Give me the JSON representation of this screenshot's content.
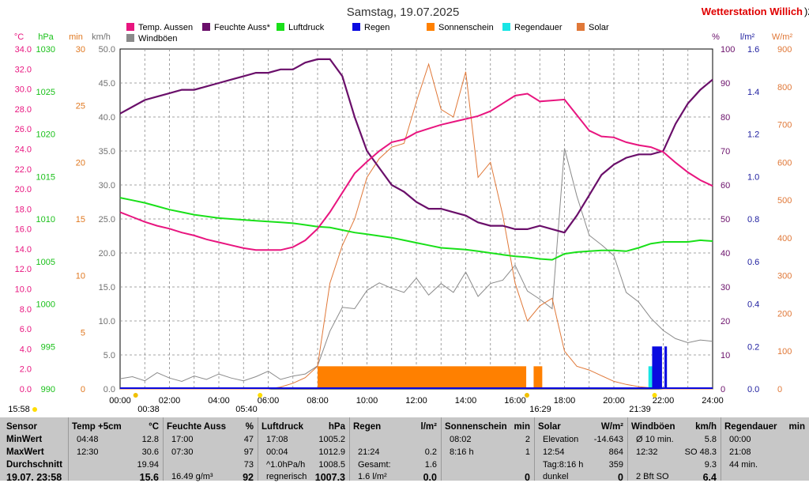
{
  "title": "Samstag, 19.07.2025",
  "brand": "Wetterstation Willich",
  "brand_suffix": ")2",
  "colors": {
    "temp": "#e8157f",
    "humidity": "#6a0f6a",
    "pressure": "#19e019",
    "rain": "#0a0ae0",
    "sunshine": "#ff8000",
    "raintime": "#19e5e5",
    "solar": "#e07838",
    "gust": "#8a8a8a",
    "brand": "#e00000"
  },
  "legend": [
    {
      "label": "Temp. Aussen",
      "key": "temp"
    },
    {
      "label": "Feuchte Auss*",
      "key": "humidity"
    },
    {
      "label": "Luftdruck",
      "key": "pressure"
    },
    {
      "label": "Regen",
      "key": "rain"
    },
    {
      "label": "Sonnenschein",
      "key": "sunshine"
    },
    {
      "label": "Regendauer",
      "key": "raintime"
    },
    {
      "label": "Solar",
      "key": "solar"
    },
    {
      "label": "Windböen",
      "key": "gust"
    }
  ],
  "axes": {
    "left": [
      {
        "unit": "°C",
        "color": "#e8157f",
        "ticks": [
          "34.0",
          "32.0",
          "30.0",
          "28.0",
          "26.0",
          "24.0",
          "22.0",
          "20.0",
          "18.0",
          "16.0",
          "14.0",
          "12.0",
          "10.0",
          "8.0",
          "6.0",
          "4.0",
          "2.0",
          "0.0"
        ]
      },
      {
        "unit": "hPa",
        "color": "#19c019",
        "ticks": [
          "1030",
          "1025",
          "1020",
          "1015",
          "1010",
          "1005",
          "1000",
          "995",
          "990"
        ]
      },
      {
        "unit": "min",
        "color": "#e07820",
        "ticks": [
          "30",
          "25",
          "20",
          "15",
          "10",
          "5",
          "0"
        ]
      },
      {
        "unit": "km/h",
        "color": "#707070",
        "ticks": [
          "50.0",
          "45.0",
          "40.0",
          "35.0",
          "30.0",
          "25.0",
          "20.0",
          "15.0",
          "10.0",
          "5.0",
          "0.0"
        ]
      }
    ],
    "right": [
      {
        "unit": "%",
        "color": "#6a0f6a",
        "ticks": [
          "100",
          "90",
          "80",
          "70",
          "60",
          "50",
          "40",
          "30",
          "20",
          "10",
          "0"
        ]
      },
      {
        "unit": "l/m²",
        "color": "#2020a0",
        "ticks": [
          "1.6",
          "1.4",
          "1.2",
          "1.0",
          "0.8",
          "0.6",
          "0.4",
          "0.2",
          "0.0"
        ]
      },
      {
        "unit": "W/m²",
        "color": "#e07838",
        "ticks": [
          "900",
          "800",
          "700",
          "600",
          "500",
          "400",
          "300",
          "200",
          "100",
          "0"
        ]
      }
    ],
    "x_ticks": [
      "00:00",
      "02:00",
      "04:00",
      "06:00",
      "08:00",
      "10:00",
      "12:00",
      "14:00",
      "16:00",
      "18:00",
      "20:00",
      "22:00",
      "24:00"
    ],
    "sun_events": [
      {
        "label": "15:58",
        "kind": "sun"
      },
      {
        "label": "00:38",
        "kind": "moon"
      },
      {
        "label": "05:40",
        "kind": "sun"
      },
      {
        "label": "16:29",
        "kind": "moon"
      },
      {
        "label": "21:39",
        "kind": "sun"
      }
    ]
  },
  "chart_data": {
    "type": "line",
    "x_hours": [
      0,
      0.5,
      1,
      1.5,
      2,
      2.5,
      3,
      3.5,
      4,
      4.5,
      5,
      5.5,
      6,
      6.5,
      7,
      7.5,
      8,
      8.5,
      9,
      9.5,
      10,
      10.5,
      11,
      11.5,
      12,
      12.5,
      13,
      13.5,
      14,
      14.5,
      15,
      15.5,
      16,
      16.5,
      17,
      17.5,
      18,
      18.5,
      19,
      19.5,
      20,
      20.5,
      21,
      21.5,
      22,
      22.5,
      23,
      23.5,
      24
    ],
    "series": [
      {
        "name": "Temp. Aussen",
        "unit": "°C",
        "values": [
          18.2,
          17.7,
          17.2,
          16.8,
          16.5,
          16.1,
          15.8,
          15.4,
          15.1,
          14.8,
          14.5,
          14.3,
          14.3,
          14.3,
          14.6,
          15.3,
          16.5,
          18.2,
          20.2,
          22.2,
          23.4,
          24.5,
          25.4,
          25.7,
          26.4,
          26.8,
          27.2,
          27.5,
          27.8,
          28.1,
          28.6,
          29.4,
          30.2,
          30.4,
          29.6,
          29.7,
          29.8,
          28.2,
          26.6,
          26.0,
          25.9,
          25.4,
          25.1,
          24.9,
          24.4,
          23.3,
          22.3,
          21.5,
          20.9
        ]
      },
      {
        "name": "Feuchte Auss*",
        "unit": "%",
        "values": [
          81,
          83,
          85,
          86,
          87,
          88,
          88,
          89,
          90,
          91,
          92,
          93,
          93,
          94,
          94,
          96,
          97,
          97,
          92,
          80,
          70,
          65,
          60,
          58,
          55,
          53,
          53,
          52,
          51,
          49,
          48,
          48,
          47,
          47,
          48,
          47,
          46,
          51,
          57,
          63,
          66,
          68,
          69,
          69,
          70,
          78,
          84,
          88,
          91
        ]
      },
      {
        "name": "Luftdruck",
        "unit": "hPa",
        "values": [
          1012.5,
          1012.2,
          1011.9,
          1011.5,
          1011.1,
          1010.8,
          1010.5,
          1010.3,
          1010.1,
          1010.0,
          1009.9,
          1009.8,
          1009.7,
          1009.6,
          1009.5,
          1009.3,
          1009.1,
          1009.0,
          1008.7,
          1008.4,
          1008.2,
          1008.0,
          1007.8,
          1007.5,
          1007.2,
          1006.9,
          1006.6,
          1006.5,
          1006.4,
          1006.2,
          1006.0,
          1005.8,
          1005.6,
          1005.5,
          1005.3,
          1005.2,
          1005.9,
          1006.1,
          1006.2,
          1006.3,
          1006.3,
          1006.2,
          1006.6,
          1007.1,
          1007.3,
          1007.3,
          1007.3,
          1007.5,
          1007.4
        ]
      },
      {
        "name": "Solar",
        "unit": "W/m²",
        "values": [
          0,
          0,
          0,
          0,
          0,
          0,
          0,
          0,
          0,
          0,
          0,
          0,
          0,
          5,
          15,
          30,
          60,
          280,
          380,
          450,
          560,
          610,
          640,
          650,
          760,
          860,
          740,
          720,
          840,
          560,
          600,
          460,
          280,
          180,
          220,
          240,
          100,
          60,
          50,
          35,
          20,
          12,
          6,
          3,
          0,
          0,
          0,
          0,
          0
        ]
      },
      {
        "name": "Windböen",
        "unit": "km/h",
        "values": [
          1.5,
          1.8,
          1.2,
          2.4,
          1.6,
          1.1,
          1.9,
          1.4,
          2.2,
          1.6,
          1.2,
          1.8,
          2.6,
          1.4,
          1.9,
          2.2,
          3.4,
          8.5,
          12.0,
          11.8,
          14.5,
          15.6,
          14.8,
          14.2,
          16.3,
          13.8,
          15.5,
          14.2,
          17.2,
          13.6,
          15.5,
          16.0,
          18.2,
          14.4,
          13.2,
          11.8,
          35.4,
          28.4,
          22.6,
          21.2,
          19.6,
          14.2,
          12.8,
          10.4,
          8.6,
          7.4,
          6.8,
          7.2,
          7.0
        ]
      }
    ],
    "sunshine_bars": [
      {
        "start": 8.0,
        "end": 16.0,
        "minutes": 2
      },
      {
        "start": 16.0,
        "end": 16.45,
        "minutes": 2
      },
      {
        "start": 16.75,
        "end": 17.1,
        "minutes": 2
      }
    ],
    "raintime_bars": [
      {
        "start": 21.4,
        "end": 21.85,
        "minutes": 2
      }
    ],
    "rain_bars": [
      {
        "start": 21.55,
        "end": 21.95,
        "value": 0.2
      },
      {
        "start": 22.05,
        "end": 22.15,
        "value": 0.2
      }
    ],
    "ylim_temp": [
      0,
      35
    ],
    "ylim_humidity": [
      0,
      100
    ],
    "ylim_pressure": [
      990,
      1030
    ],
    "ylim_wind": [
      0,
      50
    ],
    "ylim_solar": [
      0,
      900
    ],
    "grid": true,
    "legend_position": "top"
  },
  "stats": {
    "rows": [
      "MinWert",
      "MaxWert",
      "Durchschnitt"
    ],
    "sensor_header": "Sensor",
    "date_time": "19.07. 23:58",
    "columns": [
      {
        "name": "Temp +5cm",
        "unit": "°C",
        "min": [
          "04:48",
          "12.8"
        ],
        "max": [
          "12:30",
          "30.6"
        ],
        "avg": [
          "",
          "19.94"
        ],
        "cur": [
          "",
          "15.6"
        ]
      },
      {
        "name": "Feuchte Auss",
        "unit": "%",
        "min": [
          "17:00",
          "47"
        ],
        "max": [
          "07:30",
          "97"
        ],
        "avg": [
          "",
          "73"
        ],
        "cur": [
          "16.49 g/m³",
          "92"
        ]
      },
      {
        "name": "Luftdruck",
        "unit": "hPa",
        "min": [
          "17:08",
          "1005.2"
        ],
        "max": [
          "00:04",
          "1012.9"
        ],
        "avg": [
          "^1.0hPa/h",
          "1008.5"
        ],
        "cur": [
          "regnerisch",
          "1007.3"
        ]
      },
      {
        "name": "Regen",
        "unit": "l/m²",
        "min": [
          "",
          ""
        ],
        "max": [
          "21:24",
          "0.2"
        ],
        "avg": [
          "Gesamt:",
          "1.6"
        ],
        "cur": [
          "1.6 l/m²",
          "0.0"
        ]
      },
      {
        "name": "Sonnenschein",
        "unit": "min",
        "min": [
          "08:02",
          "2"
        ],
        "max": [
          "8:16 h",
          "1"
        ],
        "avg": [
          "",
          ""
        ],
        "cur": [
          "",
          "0"
        ]
      },
      {
        "name": "Solar",
        "unit": "W/m²",
        "min": [
          "Elevation",
          "-14.643"
        ],
        "max": [
          "12:54",
          "864"
        ],
        "avg": [
          "Tag:8:16 h",
          "359"
        ],
        "cur": [
          "dunkel",
          "0"
        ]
      },
      {
        "name": "Windböen",
        "unit": "km/h",
        "min": [
          "Ø 10 min.",
          "5.8"
        ],
        "max": [
          "12:32",
          "SO 48.3"
        ],
        "avg": [
          "",
          "9.3"
        ],
        "cur": [
          "2 Bft SO",
          "6.4"
        ]
      },
      {
        "name": "Regendauer",
        "unit": "min",
        "min": [
          "00:00",
          ""
        ],
        "max": [
          "21:08",
          ""
        ],
        "avg": [
          "44 min.",
          ""
        ],
        "cur": [
          "",
          ""
        ]
      }
    ]
  }
}
